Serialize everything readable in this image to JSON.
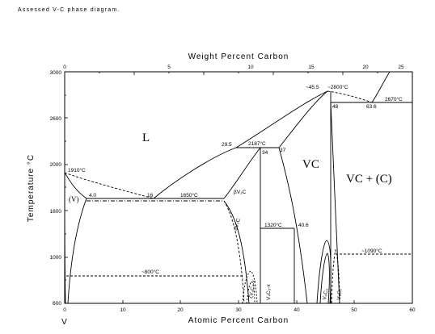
{
  "caption": "Assessed V-C phase diagram.",
  "axes": {
    "top_title": "Weight Percent Carbon",
    "bottom_title": "Atomic Percent Carbon",
    "left_title": "Temperature °C",
    "top_ticks": [
      "0",
      "5",
      "10",
      "15",
      "20",
      "25"
    ],
    "bottom_ticks": [
      "0",
      "10",
      "20",
      "30",
      "40",
      "50",
      "60"
    ],
    "left_ticks": [
      "600",
      "1000",
      "1600",
      "2000",
      "2600",
      "3000"
    ],
    "element_label": "V"
  },
  "phases": {
    "liquid": "L",
    "vc": "VC",
    "vc_plus_c": "VC + (C)",
    "v_solid": "(V)",
    "beta_v2c": "βV₂C",
    "alpha_v2c": "αV₂C",
    "zeta_v4c3": "ζV₄C₃-x",
    "v4c3": "V₄C₃-x",
    "v6c5": "V₆C₅",
    "v8c7": "V₈C₇"
  },
  "annotations": {
    "t1910": "1910°C",
    "t1650": "1650°C",
    "t2187": "2187°C",
    "t2800": "~2800°C",
    "t2670": "2670°C",
    "t1320": "1320°C",
    "t1090": "~1090°C",
    "t800": "~800°C",
    "c4_0": "4.0",
    "c16": "16",
    "c29_5": "29.5",
    "c34": "34",
    "c37": "37",
    "c40_6": "40.6",
    "c45_5": "~45.5",
    "c48": "48",
    "c63_6": "63.6"
  }
}
